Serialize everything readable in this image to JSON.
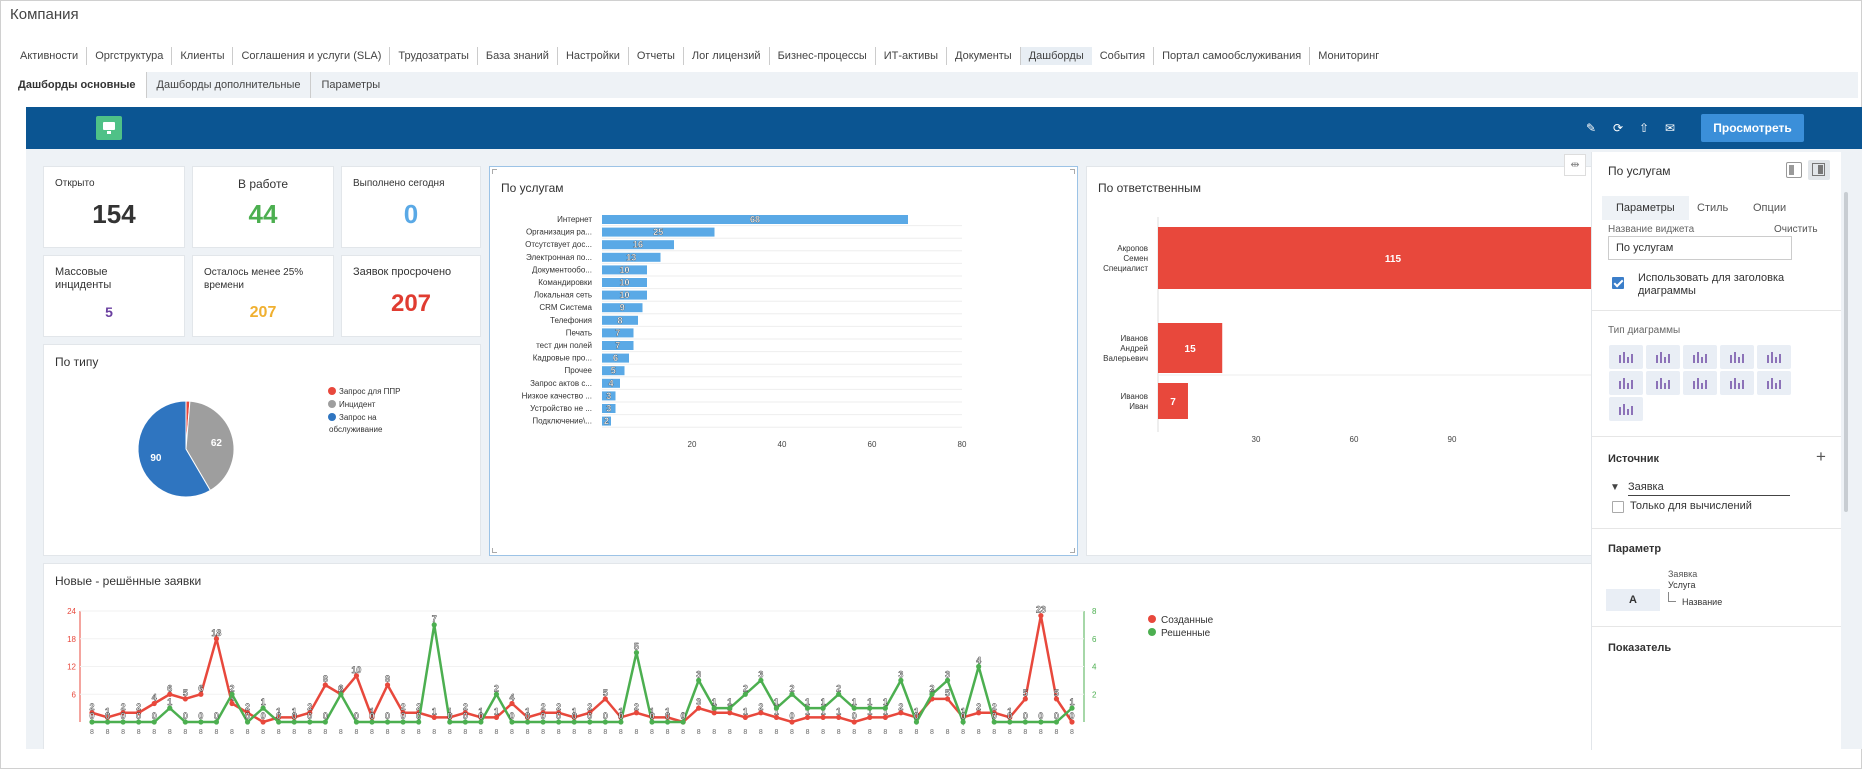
{
  "company": "Компания",
  "main_tabs": [
    "Активности",
    "Оргструктура",
    "Клиенты",
    "Соглашения и услуги (SLA)",
    "Трудозатраты",
    "База знаний",
    "Настройки",
    "Отчеты",
    "Лог лицензий",
    "Бизнес-процессы",
    "ИТ-активы",
    "Документы",
    "Дашборды",
    "События",
    "Портал самообслуживания",
    "Мониторинг"
  ],
  "main_tab_active": "Дашборды",
  "sub_tabs": [
    "Дашборды основные",
    "Дашборды дополнительные",
    "Параметры"
  ],
  "sub_tab_active": "Дашборды основные",
  "toolbar": {
    "view_button": "Просмотреть"
  },
  "widgets": {
    "open": {
      "label": "Открыто",
      "value": "154"
    },
    "in_work": {
      "label": "В работе",
      "value": "44"
    },
    "done_today": {
      "label": "Выполнено сегодня",
      "value": "0"
    },
    "mass": {
      "label": "Массовые инциденты",
      "value": "5"
    },
    "left25": {
      "label": "Осталось менее 25% времени",
      "value": "207"
    },
    "overdue": {
      "label": "Заявок просрочено",
      "value": "207"
    }
  },
  "pie_title": "По типу",
  "services_title": "По услугам",
  "resp_title": "По ответственным",
  "line_title": "Новые - решённые заявки",
  "colors": {
    "blue": "#0b5592",
    "bar": "#5aa9e6",
    "red": "#e8483c",
    "green": "#4caf50",
    "gray": "#9e9e9e",
    "pieblue": "#2f75c0"
  },
  "chart_data": [
    {
      "type": "pie",
      "title": "По типу",
      "slices": [
        {
          "name": "Запрос для ППР",
          "value": 2,
          "color": "#e8483c"
        },
        {
          "name": "Инцидент",
          "value": 62,
          "color": "#9e9e9e"
        },
        {
          "name": "Запрос на обслуживание",
          "value": 90,
          "color": "#2f75c0"
        }
      ]
    },
    {
      "type": "bar",
      "title": "По услугам",
      "orientation": "horizontal",
      "categories": [
        "Интернет",
        "Организация ра...",
        "Отсутствует дос...",
        "Электронная по...",
        "Документообо...",
        "Командировки",
        "Локальная сеть",
        "CRM Система",
        "Телефония",
        "Печать",
        "тест дин полей",
        "Кадровые про...",
        "Прочее",
        "Запрос актов с...",
        "Низкое качество ...",
        "Устройство не ...",
        "Подключение\\..."
      ],
      "values": [
        68,
        25,
        16,
        13,
        10,
        10,
        10,
        9,
        8,
        7,
        7,
        6,
        5,
        4,
        3,
        3,
        2
      ],
      "xticks": [
        "20",
        "40",
        "60",
        "80"
      ],
      "xlim": [
        0,
        80
      ]
    },
    {
      "type": "bar",
      "title": "По ответственным",
      "orientation": "horizontal",
      "categories": [
        "Акропов Семен Специалист",
        "Иванов Андрей Валерьевич",
        "Иванов Иван"
      ],
      "values": [
        115,
        15,
        7
      ],
      "xticks": [
        "30",
        "60",
        "90"
      ]
    },
    {
      "type": "line",
      "title": "Новые - решённые заявки",
      "series": [
        {
          "name": "Созданные",
          "color": "#e8483c",
          "axis": "left",
          "values": [
            2,
            1,
            2,
            2,
            4,
            6,
            5,
            6,
            18,
            4,
            2,
            0,
            1,
            1,
            2,
            8,
            6,
            10,
            1,
            8,
            2,
            2,
            1,
            1,
            2,
            1,
            1,
            4,
            1,
            2,
            2,
            1,
            2,
            5,
            1,
            2,
            1,
            1,
            0,
            3,
            2,
            2,
            1,
            2,
            1,
            0,
            1,
            1,
            1,
            0,
            1,
            1,
            2,
            1,
            5,
            5,
            1,
            2,
            2,
            1,
            5,
            23,
            5,
            0
          ]
        },
        {
          "name": "Решенные",
          "color": "#4caf50",
          "axis": "right",
          "values": [
            0,
            0,
            0,
            0,
            0,
            1,
            0,
            0,
            0,
            2,
            0,
            1,
            0,
            0,
            0,
            0,
            2,
            0,
            0,
            0,
            0,
            0,
            7,
            0,
            0,
            0,
            2,
            0,
            0,
            0,
            0,
            0,
            0,
            0,
            0,
            5,
            0,
            0,
            0,
            3,
            1,
            1,
            2,
            3,
            1,
            2,
            1,
            1,
            2,
            1,
            1,
            1,
            3,
            0,
            2,
            3,
            0,
            4,
            0,
            0,
            0,
            0,
            0,
            1
          ]
        }
      ],
      "yleft": [
        "24",
        "18",
        "12",
        "6"
      ],
      "yright": [
        "8",
        "6",
        "4",
        "2"
      ],
      "legend": [
        "Созданные",
        "Решенные"
      ]
    }
  ],
  "panel": {
    "title": "По услугам",
    "tabs": [
      "Параметры",
      "Стиль",
      "Опции"
    ],
    "widget_name_label": "Название виджета",
    "clear": "Очистить",
    "widget_name_value": "По услугам",
    "use_for_title": "Использовать для заголовка диаграммы",
    "chart_type_label": "Тип диаграммы",
    "source_label": "Источник",
    "source_value": "Заявка",
    "only_calc": "Только для вычислений",
    "param_label": "Параметр",
    "param_entity": "Заявка",
    "param_field": "Услуга",
    "param_sub": "Название",
    "param_btn": "A",
    "indicator_label": "Показатель"
  }
}
